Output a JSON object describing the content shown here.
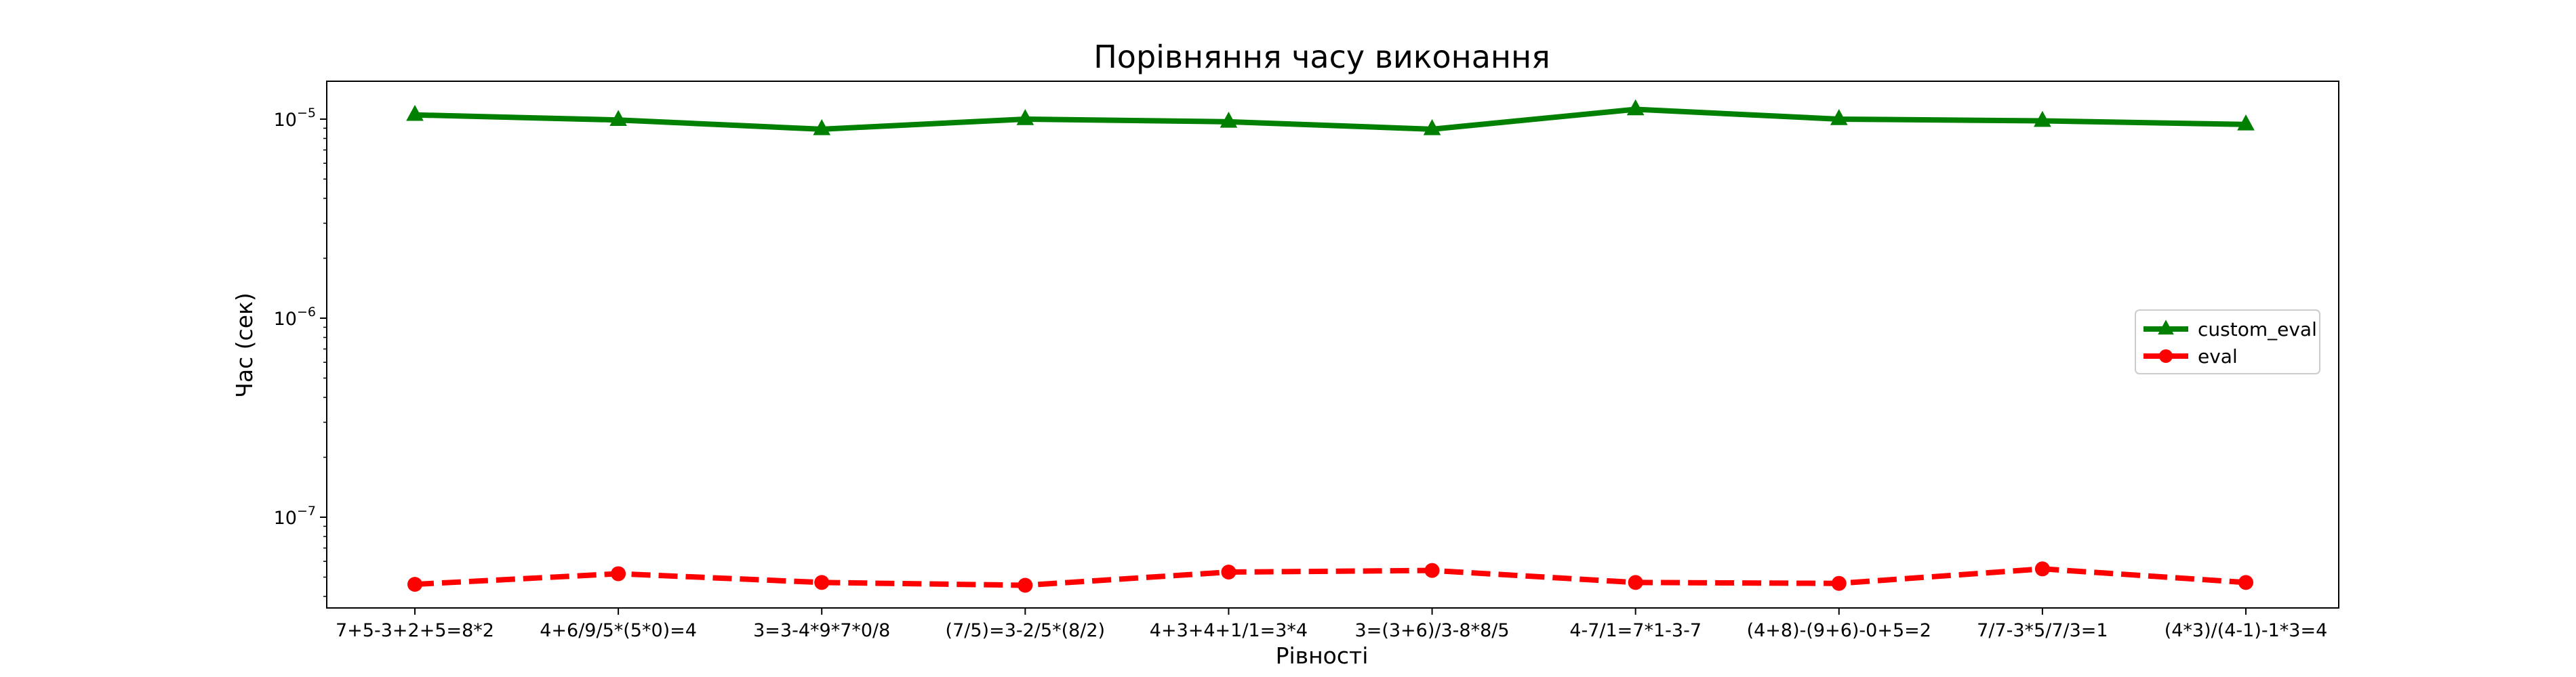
{
  "chart_data": {
    "type": "line",
    "title": "Порівняння часу виконання",
    "xlabel": "Рівності",
    "ylabel": "Час (сек)",
    "yscale": "log",
    "ylim": [
      3.5e-08,
      1.55e-05
    ],
    "grid": false,
    "legend_position": "center-right",
    "categories": [
      "7+5-3+2+5=8*2",
      "4+6/9/5*(5*0)=4",
      "3=3-4*9*7*0/8",
      "(7/5)=3-2/5*(8/2)",
      "4+3+4+1/1=3*4",
      "3=(3+6)/3-8*8/5",
      "4-7/1=7*1-3-7",
      "(4+8)-(9+6)-0+5=2",
      "7/7-3*5/7/3=1",
      "(4*3)/(4-1)-1*3=4"
    ],
    "y_ticks": [
      {
        "value": 1e-07,
        "base": "10",
        "exp": "−7"
      },
      {
        "value": 1e-06,
        "base": "10",
        "exp": "−6"
      },
      {
        "value": 1e-05,
        "base": "10",
        "exp": "−5"
      }
    ],
    "series": [
      {
        "name": "custom_eval",
        "color": "#008000",
        "linestyle": "solid",
        "marker": "triangle",
        "values": [
          1.05e-05,
          9.9e-06,
          8.9e-06,
          1e-05,
          9.7e-06,
          8.9e-06,
          1.12e-05,
          1e-05,
          9.8e-06,
          9.4e-06
        ]
      },
      {
        "name": "eval",
        "color": "#ff0000",
        "linestyle": "dashed",
        "marker": "circle",
        "values": [
          4.6e-08,
          5.2e-08,
          4.7e-08,
          4.55e-08,
          5.3e-08,
          5.4e-08,
          4.7e-08,
          4.65e-08,
          5.5e-08,
          4.7e-08
        ]
      }
    ]
  }
}
